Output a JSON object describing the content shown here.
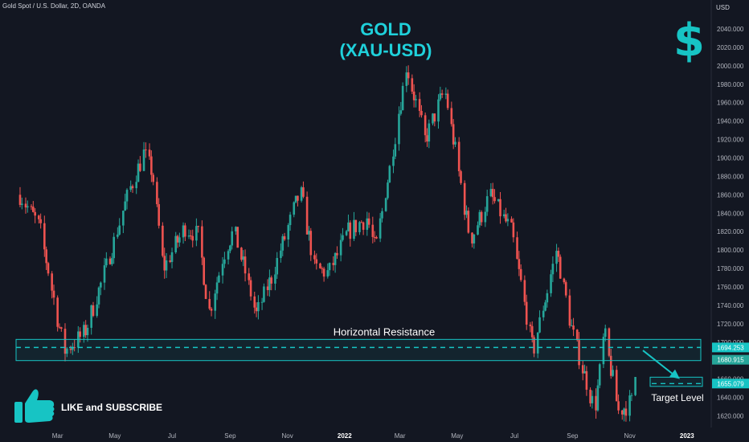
{
  "header": {
    "symbol": "Gold Spot / U.S. Dollar, 2D, OANDA",
    "currency": "USD",
    "title_line1": "GOLD",
    "title_line2": "(XAU-USD)"
  },
  "overlay": {
    "cta_text": "LIKE and SUBSCRIBE",
    "dollar_glyph": "$"
  },
  "chart_data": {
    "type": "candlestick",
    "title": "GOLD (XAU-USD)",
    "ylim": [
      1612,
      2056
    ],
    "y_ticks": [
      "2040.000",
      "2020.000",
      "2000.000",
      "1980.000",
      "1960.000",
      "1940.000",
      "1920.000",
      "1900.000",
      "1880.000",
      "1860.000",
      "1840.000",
      "1820.000",
      "1800.000",
      "1780.000",
      "1760.000",
      "1740.000",
      "1720.000",
      "1700.000",
      "1680.000",
      "1660.000",
      "1640.000",
      "1620.000"
    ],
    "x_ticks": [
      "Mar",
      "May",
      "Jul",
      "Sep",
      "Nov",
      "2022",
      "Mar",
      "May",
      "Jul",
      "Sep",
      "Nov",
      "2023"
    ],
    "x_tick_bold": [
      "2022",
      "2023"
    ],
    "x_range": [
      "Jan 2021",
      "Jan 2023"
    ],
    "price_path": [
      {
        "date": "2021-01-20",
        "price": 1860
      },
      {
        "date": "2021-02-10",
        "price": 1825
      },
      {
        "date": "2021-03-08",
        "price": 1690
      },
      {
        "date": "2021-03-30",
        "price": 1710
      },
      {
        "date": "2021-04-20",
        "price": 1775
      },
      {
        "date": "2021-05-15",
        "price": 1860
      },
      {
        "date": "2021-06-01",
        "price": 1905
      },
      {
        "date": "2021-06-10",
        "price": 1885
      },
      {
        "date": "2021-06-22",
        "price": 1780
      },
      {
        "date": "2021-07-15",
        "price": 1825
      },
      {
        "date": "2021-07-30",
        "price": 1815
      },
      {
        "date": "2021-08-09",
        "price": 1730
      },
      {
        "date": "2021-08-25",
        "price": 1795
      },
      {
        "date": "2021-09-05",
        "price": 1822
      },
      {
        "date": "2021-09-29",
        "price": 1730
      },
      {
        "date": "2021-10-15",
        "price": 1770
      },
      {
        "date": "2021-11-15",
        "price": 1865
      },
      {
        "date": "2021-11-30",
        "price": 1780
      },
      {
        "date": "2021-12-15",
        "price": 1775
      },
      {
        "date": "2022-01-05",
        "price": 1820
      },
      {
        "date": "2022-01-25",
        "price": 1835
      },
      {
        "date": "2022-02-03",
        "price": 1800
      },
      {
        "date": "2022-02-20",
        "price": 1900
      },
      {
        "date": "2022-03-08",
        "price": 2000
      },
      {
        "date": "2022-03-28",
        "price": 1920
      },
      {
        "date": "2022-04-18",
        "price": 1975
      },
      {
        "date": "2022-05-15",
        "price": 1810
      },
      {
        "date": "2022-06-05",
        "price": 1860
      },
      {
        "date": "2022-06-28",
        "price": 1820
      },
      {
        "date": "2022-07-21",
        "price": 1690
      },
      {
        "date": "2022-08-15",
        "price": 1800
      },
      {
        "date": "2022-09-01",
        "price": 1710
      },
      {
        "date": "2022-09-25",
        "price": 1625
      },
      {
        "date": "2022-10-05",
        "price": 1710
      },
      {
        "date": "2022-10-20",
        "price": 1625
      },
      {
        "date": "2022-11-03",
        "price": 1635
      },
      {
        "date": "2022-11-08",
        "price": 1670
      }
    ],
    "zones": [
      {
        "label": "Horizontal Resistance",
        "low": 1680,
        "high": 1703,
        "dash_level": 1694.253
      },
      {
        "label": "Target Level",
        "low": 1652,
        "high": 1662,
        "dash_level": 1655.079
      }
    ],
    "price_labels": [
      {
        "value": "1694.253",
        "color": "#17c4c4"
      },
      {
        "value": "1680.915",
        "color": "#26a69a"
      },
      {
        "value": "1655.079",
        "color": "#17c4c4"
      }
    ],
    "colors": {
      "up": "#26a69a",
      "down": "#ef5350",
      "zone": "#17c4c4",
      "background": "#131722"
    }
  }
}
